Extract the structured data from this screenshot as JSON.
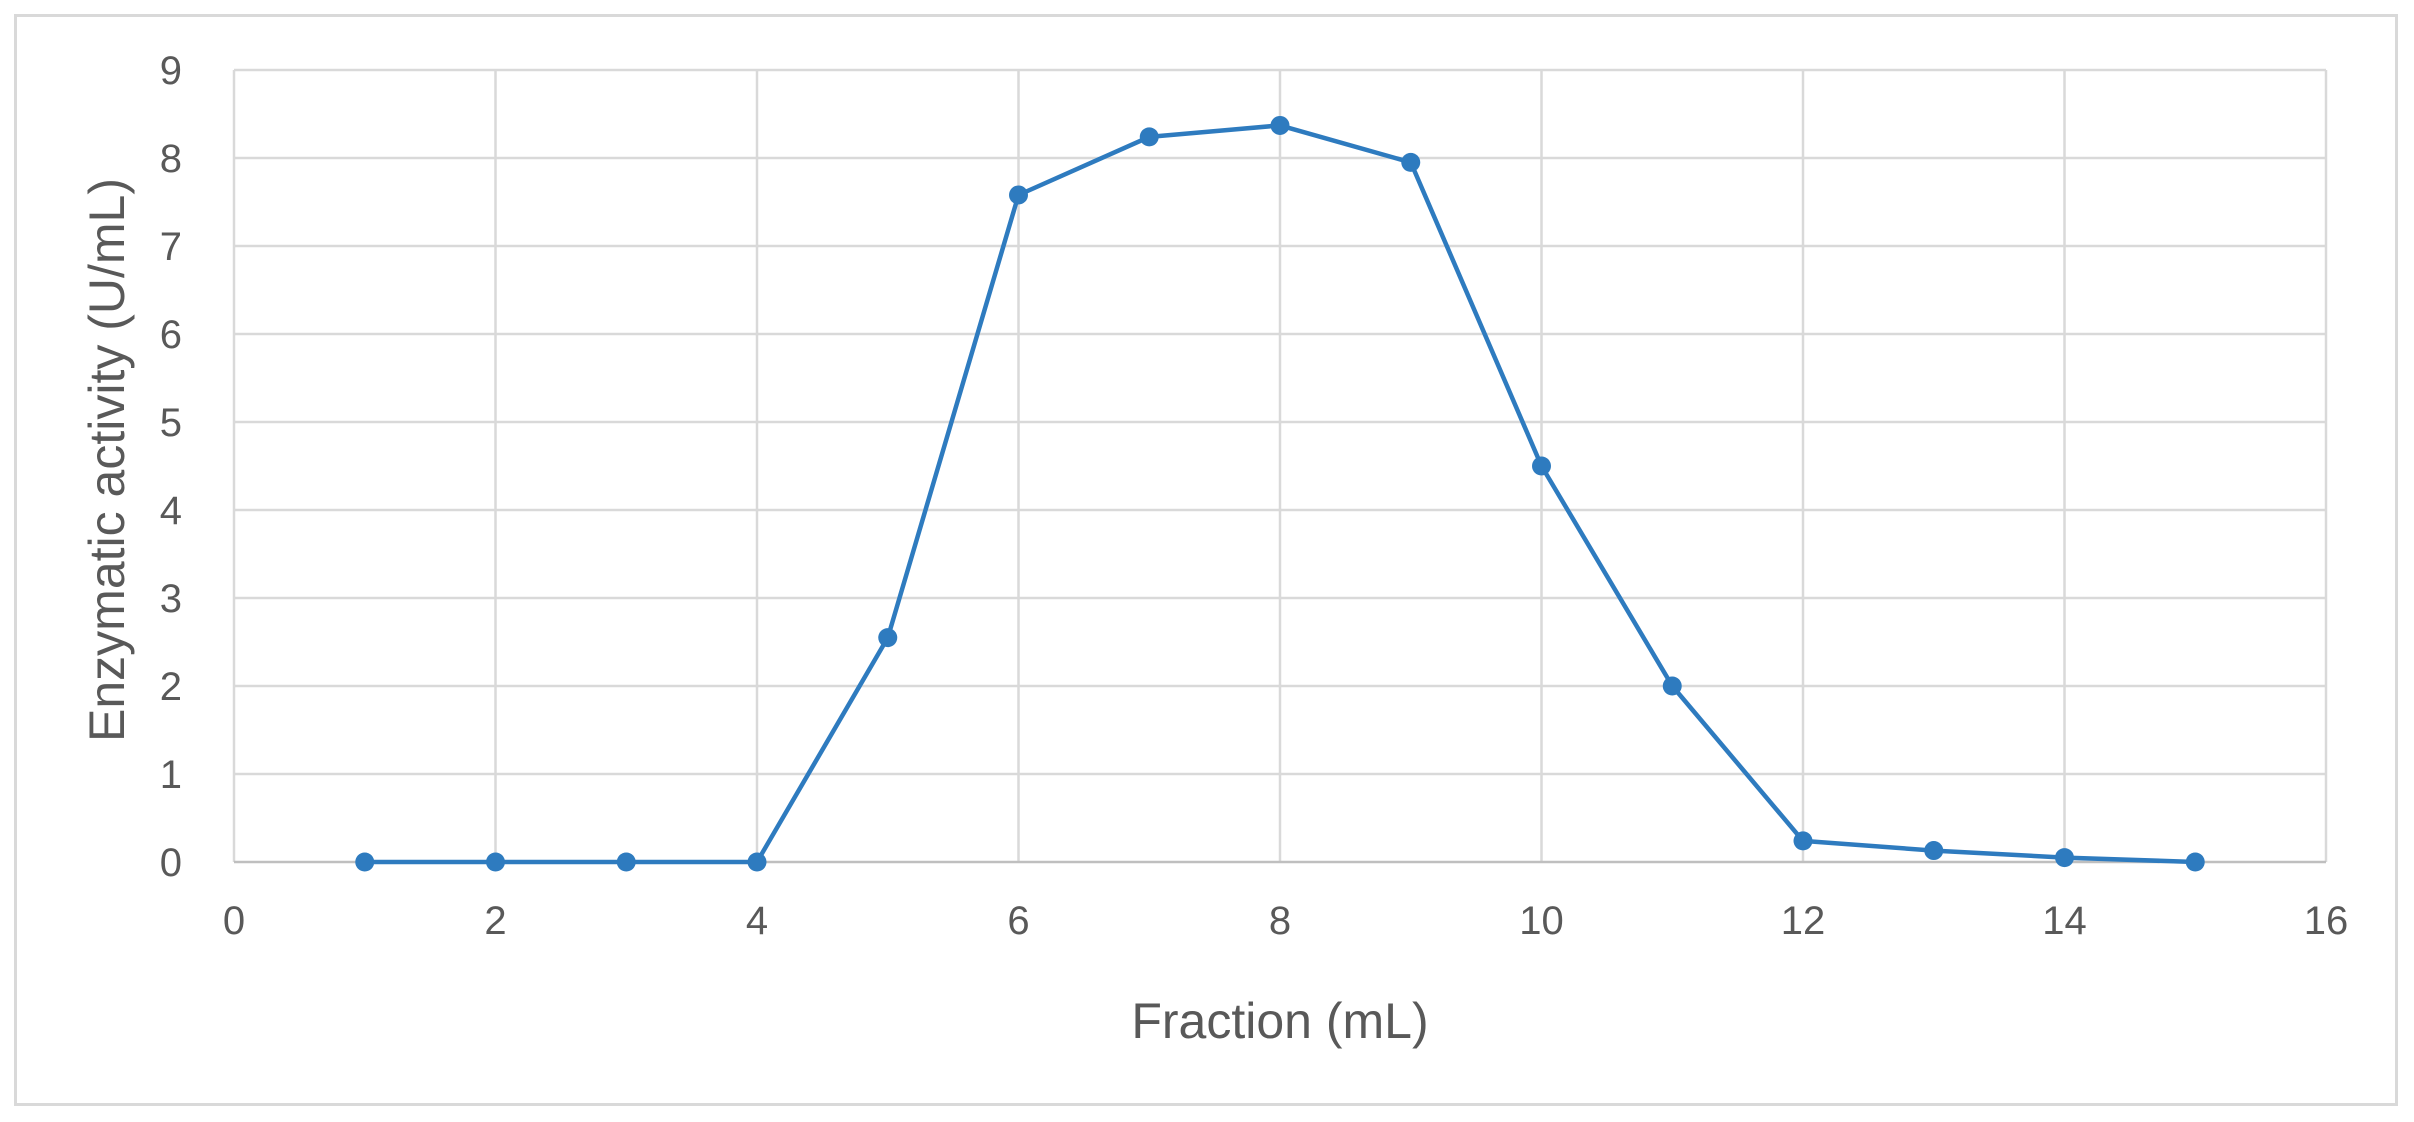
{
  "chart_data": {
    "type": "line",
    "title": "",
    "xlabel": "Fraction (mL)",
    "ylabel": "Enzymatic activity (U/mL)",
    "xlim": [
      0,
      16
    ],
    "ylim": [
      0,
      9
    ],
    "xticks": [
      0,
      2,
      4,
      6,
      8,
      10,
      12,
      14,
      16
    ],
    "yticks": [
      0,
      1,
      2,
      3,
      4,
      5,
      6,
      7,
      8,
      9
    ],
    "grid": true,
    "legend": "none",
    "series_color": "#2e7bbf",
    "series": [
      {
        "x": [
          1,
          2,
          3,
          4,
          5,
          6,
          7,
          8,
          9,
          10,
          11,
          12,
          13,
          14,
          15
        ],
        "y": [
          0,
          0,
          0,
          0,
          2.55,
          7.58,
          8.24,
          8.37,
          7.95,
          4.5,
          2.0,
          0.24,
          0.13,
          0.05,
          0.0
        ]
      }
    ]
  }
}
